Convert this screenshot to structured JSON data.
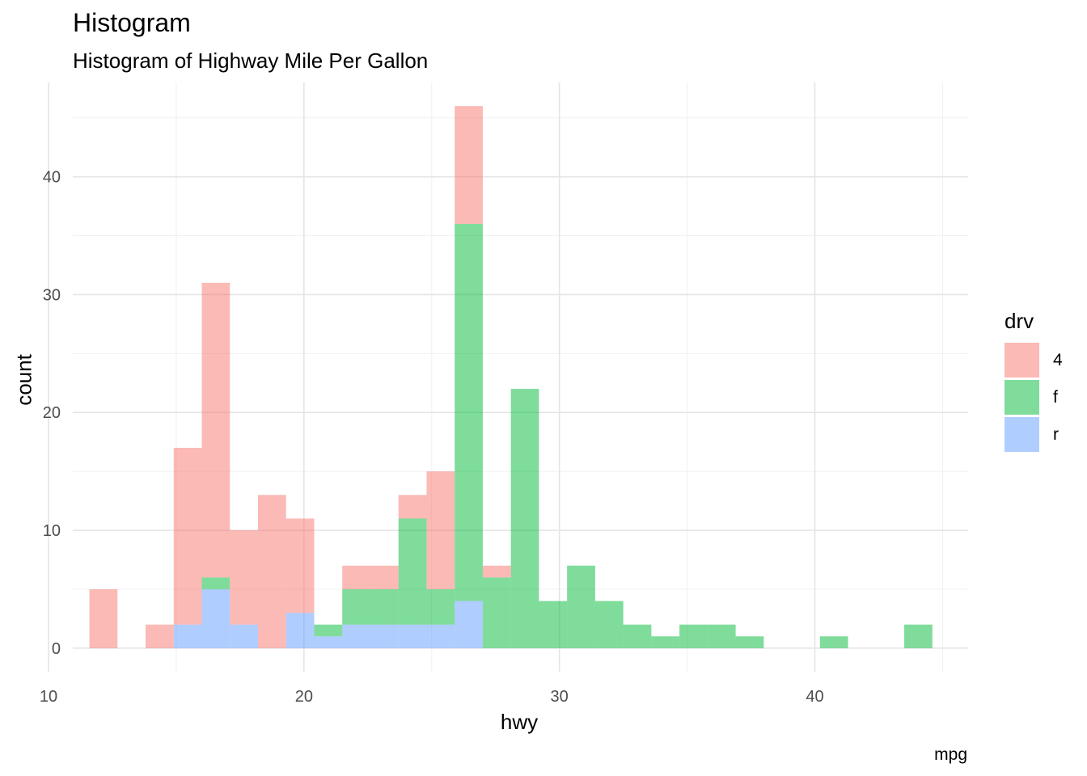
{
  "chart_data": {
    "type": "bar",
    "subtype": "stacked-histogram",
    "title": "Histogram",
    "subtitle": "Histogram of Highway Mile Per Gallon",
    "caption": "mpg",
    "xlabel": "hwy",
    "ylabel": "count",
    "xlim": [
      10,
      46
    ],
    "ylim": [
      -2,
      48
    ],
    "xticks": [
      10,
      20,
      30,
      40
    ],
    "yticks": [
      0,
      10,
      20,
      30,
      40
    ],
    "grid": true,
    "legend": {
      "title": "drv",
      "position": "right"
    },
    "stack_order": [
      "r",
      "f",
      "4"
    ],
    "series": [
      {
        "name": "4",
        "color": "#F8766D",
        "bins": [
          {
            "x0": 11.6,
            "x1": 12.7,
            "count": 5
          },
          {
            "x0": 13.8,
            "x1": 14.9,
            "count": 2
          },
          {
            "x0": 14.9,
            "x1": 16.0,
            "count": 15
          },
          {
            "x0": 16.0,
            "x1": 17.1,
            "count": 25
          },
          {
            "x0": 17.1,
            "x1": 18.2,
            "count": 8
          },
          {
            "x0": 18.2,
            "x1": 19.3,
            "count": 13
          },
          {
            "x0": 19.3,
            "x1": 20.4,
            "count": 8
          },
          {
            "x0": 21.5,
            "x1": 22.6,
            "count": 2
          },
          {
            "x0": 22.6,
            "x1": 23.7,
            "count": 2
          },
          {
            "x0": 23.7,
            "x1": 24.8,
            "count": 2
          },
          {
            "x0": 24.8,
            "x1": 25.9,
            "count": 10
          },
          {
            "x0": 25.9,
            "x1": 27.0,
            "count": 10
          },
          {
            "x0": 27.0,
            "x1": 28.1,
            "count": 1
          }
        ]
      },
      {
        "name": "f",
        "color": "#00BA38",
        "bins": [
          {
            "x0": 16.0,
            "x1": 17.1,
            "count": 1
          },
          {
            "x0": 20.4,
            "x1": 21.5,
            "count": 1
          },
          {
            "x0": 21.5,
            "x1": 22.6,
            "count": 3
          },
          {
            "x0": 22.6,
            "x1": 23.7,
            "count": 3
          },
          {
            "x0": 23.7,
            "x1": 24.8,
            "count": 9
          },
          {
            "x0": 24.8,
            "x1": 25.9,
            "count": 3
          },
          {
            "x0": 25.9,
            "x1": 27.0,
            "count": 32
          },
          {
            "x0": 27.0,
            "x1": 28.1,
            "count": 6
          },
          {
            "x0": 28.1,
            "x1": 29.2,
            "count": 22
          },
          {
            "x0": 29.2,
            "x1": 30.3,
            "count": 4
          },
          {
            "x0": 30.3,
            "x1": 31.4,
            "count": 7
          },
          {
            "x0": 31.4,
            "x1": 32.5,
            "count": 4
          },
          {
            "x0": 32.5,
            "x1": 33.6,
            "count": 2
          },
          {
            "x0": 33.6,
            "x1": 34.7,
            "count": 1
          },
          {
            "x0": 34.7,
            "x1": 35.8,
            "count": 2
          },
          {
            "x0": 35.8,
            "x1": 36.9,
            "count": 2
          },
          {
            "x0": 36.9,
            "x1": 38.0,
            "count": 1
          },
          {
            "x0": 40.2,
            "x1": 41.3,
            "count": 1
          },
          {
            "x0": 43.5,
            "x1": 44.6,
            "count": 2
          }
        ]
      },
      {
        "name": "r",
        "color": "#619CFF",
        "bins": [
          {
            "x0": 14.9,
            "x1": 16.0,
            "count": 2
          },
          {
            "x0": 16.0,
            "x1": 17.1,
            "count": 5
          },
          {
            "x0": 17.1,
            "x1": 18.2,
            "count": 2
          },
          {
            "x0": 19.3,
            "x1": 20.4,
            "count": 3
          },
          {
            "x0": 20.4,
            "x1": 21.5,
            "count": 1
          },
          {
            "x0": 21.5,
            "x1": 22.6,
            "count": 2
          },
          {
            "x0": 22.6,
            "x1": 23.7,
            "count": 2
          },
          {
            "x0": 23.7,
            "x1": 24.8,
            "count": 2
          },
          {
            "x0": 24.8,
            "x1": 25.9,
            "count": 2
          },
          {
            "x0": 25.9,
            "x1": 27.0,
            "count": 4
          }
        ]
      }
    ]
  }
}
